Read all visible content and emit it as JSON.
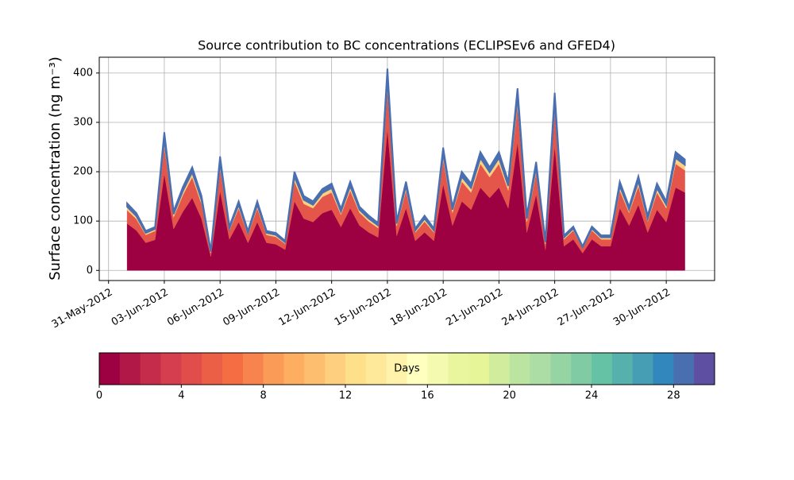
{
  "chart_data": {
    "type": "stacked_area",
    "title": "Source contribution to BC concentrations (ECLIPSEv6 and GFED4)",
    "ylabel": "Surface concentration (ng m⁻³)",
    "x": [
      1,
      1.5,
      2,
      2.5,
      3,
      3.5,
      4,
      4.5,
      5,
      5.5,
      6,
      6.5,
      7,
      7.5,
      8,
      8.5,
      9,
      9.5,
      10,
      10.5,
      11,
      11.5,
      12,
      12.5,
      13,
      13.5,
      14,
      14.5,
      15,
      15.5,
      16,
      16.5,
      17,
      17.5,
      18,
      18.5,
      19,
      19.5,
      20,
      20.5,
      21,
      21.5,
      22,
      22.5,
      23,
      23.5,
      24,
      24.5,
      25,
      25.5,
      26,
      26.5,
      27,
      27.5,
      28,
      28.5,
      29,
      29.5,
      30,
      30.5,
      31
    ],
    "xlim": [
      -0.5,
      32.6
    ],
    "xticks": [
      {
        "value": 0,
        "label": "31-May-2012"
      },
      {
        "value": 3,
        "label": "03-Jun-2012"
      },
      {
        "value": 6,
        "label": "06-Jun-2012"
      },
      {
        "value": 9,
        "label": "09-Jun-2012"
      },
      {
        "value": 12,
        "label": "12-Jun-2012"
      },
      {
        "value": 15,
        "label": "15-Jun-2012"
      },
      {
        "value": 18,
        "label": "18-Jun-2012"
      },
      {
        "value": 21,
        "label": "21-Jun-2012"
      },
      {
        "value": 24,
        "label": "24-Jun-2012"
      },
      {
        "value": 27,
        "label": "27-Jun-2012"
      },
      {
        "value": 30,
        "label": "30-Jun-2012"
      }
    ],
    "ylim": [
      -20.5,
      432
    ],
    "yticks": [
      0,
      100,
      200,
      300,
      400
    ],
    "grid": true,
    "series": [
      {
        "color": "#9e0142",
        "values": [
          95,
          81,
          56,
          62,
          196,
          84,
          119,
          147,
          105,
          28,
          161,
          63,
          98,
          56,
          98,
          56,
          53,
          42,
          140,
          105,
          98,
          116,
          123,
          88,
          126,
          91,
          77,
          67,
          287,
          70,
          126,
          60,
          77,
          60,
          175,
          91,
          140,
          123,
          168,
          147,
          168,
          126,
          259,
          77,
          154,
          42,
          252,
          49,
          63,
          35,
          63,
          49,
          49,
          126,
          91,
          133,
          77,
          123,
          98,
          168,
          158
        ]
      },
      {
        "color": "#e4564a",
        "values": [
          27,
          23,
          16,
          18,
          56,
          24,
          34,
          42,
          30,
          8,
          46,
          18,
          28,
          16,
          28,
          16,
          15,
          12,
          40,
          30,
          28,
          33,
          35,
          25,
          36,
          26,
          22,
          19,
          82,
          20,
          36,
          17,
          22,
          17,
          50,
          26,
          40,
          35,
          48,
          42,
          48,
          36,
          74,
          22,
          44,
          12,
          72,
          14,
          18,
          10,
          18,
          14,
          14,
          36,
          26,
          38,
          22,
          35,
          28,
          48,
          45
        ]
      },
      {
        "color": "#fdcf7e",
        "values": [
          7,
          6,
          4,
          4,
          14,
          6,
          8,
          10,
          8,
          2,
          12,
          4,
          7,
          4,
          7,
          4,
          4,
          3,
          10,
          8,
          7,
          8,
          9,
          6,
          9,
          6,
          6,
          5,
          20,
          5,
          9,
          4,
          6,
          4,
          12,
          6,
          10,
          9,
          12,
          10,
          12,
          9,
          18,
          6,
          11,
          3,
          18,
          4,
          4,
          2,
          4,
          4,
          4,
          9,
          6,
          10,
          6,
          9,
          7,
          12,
          11
        ]
      },
      {
        "color": "#4a6fb1",
        "values": [
          7,
          6,
          4,
          4,
          14,
          6,
          8,
          10,
          8,
          2,
          12,
          4,
          7,
          4,
          7,
          4,
          4,
          3,
          10,
          8,
          7,
          8,
          9,
          6,
          9,
          6,
          6,
          5,
          20,
          5,
          9,
          4,
          6,
          4,
          12,
          6,
          10,
          9,
          12,
          10,
          12,
          9,
          18,
          6,
          11,
          3,
          18,
          4,
          4,
          2,
          4,
          4,
          4,
          9,
          6,
          10,
          6,
          9,
          7,
          12,
          11
        ]
      }
    ],
    "colorbar": {
      "label": "Days",
      "lim": [
        0,
        30
      ],
      "ticks": [
        0,
        4,
        8,
        12,
        16,
        20,
        24,
        28
      ],
      "colors": [
        "#9e0142",
        "#b11747",
        "#c52c4b",
        "#d53e4f",
        "#e04d4a",
        "#eb5f46",
        "#f46d43",
        "#f7844e",
        "#fa9b58",
        "#fdae61",
        "#fdbf6f",
        "#fdcf7e",
        "#fee08b",
        "#fee99a",
        "#fff2aa",
        "#ffffbf",
        "#f4fab0",
        "#e9f69e",
        "#e6f598",
        "#d1ec9c",
        "#bbe4a0",
        "#abdda4",
        "#97d4a4",
        "#80cba4",
        "#66c2a5",
        "#56b0ac",
        "#459eb3",
        "#3288bd",
        "#4a6fb1",
        "#5e4fa2"
      ]
    }
  }
}
